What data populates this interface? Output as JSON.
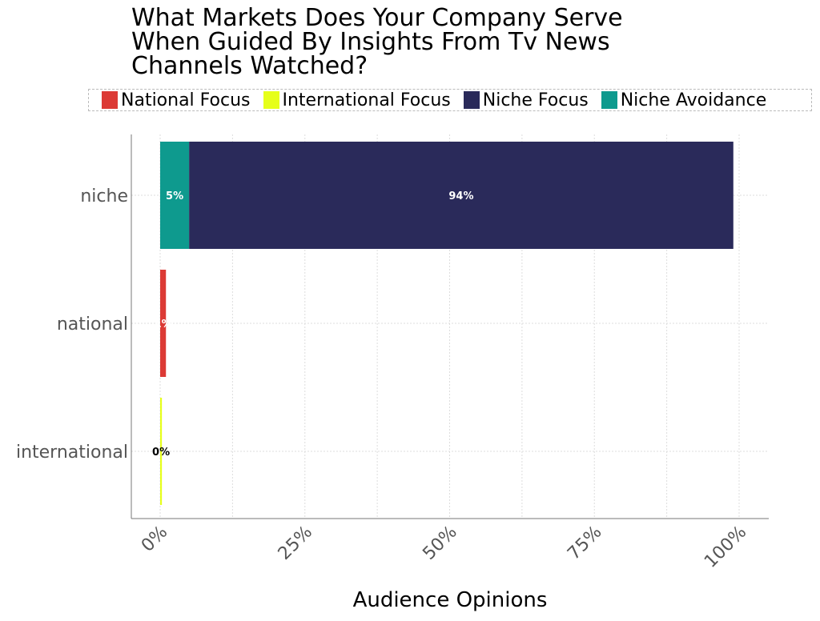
{
  "chart_data": {
    "type": "bar",
    "orientation": "horizontal",
    "stacked": true,
    "title_lines": [
      "What Markets Does Your Company Serve",
      "When Guided By Insights From Tv News",
      "Channels Watched?"
    ],
    "xlabel": "Audience Opinions",
    "ylabel": "",
    "categories": [
      "niche",
      "national",
      "international"
    ],
    "x_ticks": [
      "0%",
      "25%",
      "50%",
      "75%",
      "100%"
    ],
    "xlim": [
      0,
      105
    ],
    "grid": true,
    "legend_position": "top",
    "series": [
      {
        "name": "National Focus",
        "color": "#dc3a35",
        "label_color": "#ffffff",
        "values": [
          0,
          1,
          0
        ],
        "labels": [
          "",
          "1%",
          ""
        ]
      },
      {
        "name": "International Focus",
        "color": "#e6ff1a",
        "label_color": "#000000",
        "values": [
          0,
          0,
          0.3
        ],
        "labels": [
          "",
          "",
          "0%"
        ]
      },
      {
        "name": "Niche Focus",
        "color": "#2a2a5a",
        "label_color": "#ffffff",
        "values": [
          94,
          0,
          0
        ],
        "labels": [
          "94%",
          "",
          ""
        ],
        "offset": 5
      },
      {
        "name": "Niche Avoidance",
        "color": "#0e9a8e",
        "label_color": "#ffffff",
        "values": [
          5,
          0,
          0
        ],
        "labels": [
          "5%",
          "",
          ""
        ]
      }
    ]
  }
}
